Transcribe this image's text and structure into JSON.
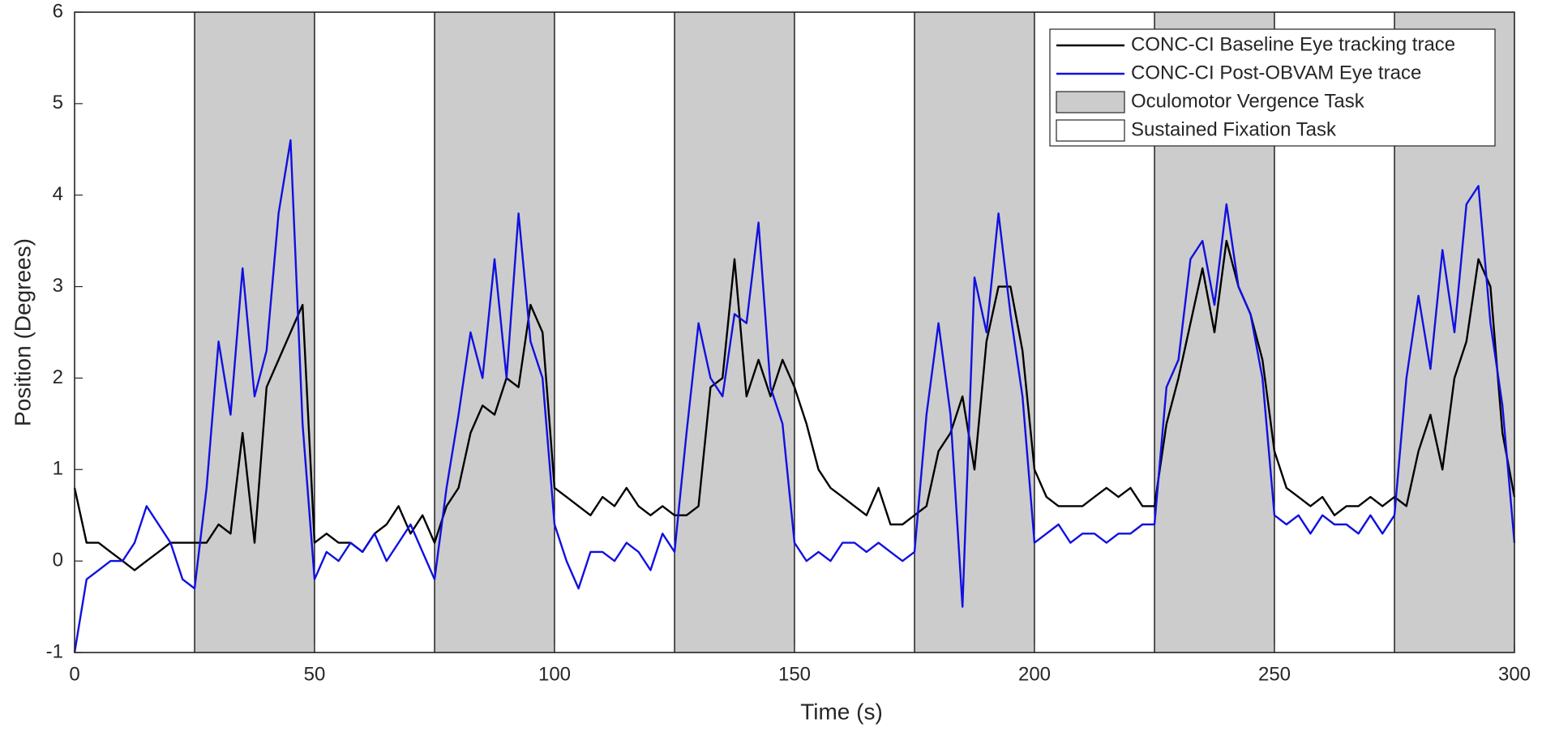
{
  "chart_data": {
    "type": "line",
    "xlabel": "Time (s)",
    "ylabel": "Position (Degrees)",
    "xlim": [
      0,
      300
    ],
    "ylim": [
      -1,
      6
    ],
    "xticks": [
      0,
      50,
      100,
      150,
      200,
      250,
      300
    ],
    "yticks": [
      -1,
      0,
      1,
      2,
      3,
      4,
      5,
      6
    ],
    "legend": "northeast",
    "regions": [
      {
        "name": "Oculomotor Vergence Task",
        "color": "#cccccc",
        "spans": [
          [
            25,
            50
          ],
          [
            75,
            100
          ],
          [
            125,
            150
          ],
          [
            175,
            200
          ],
          [
            225,
            250
          ],
          [
            275,
            300
          ]
        ]
      },
      {
        "name": "Sustained Fixation Task",
        "color": "#ffffff",
        "spans": [
          [
            0,
            25
          ],
          [
            50,
            75
          ],
          [
            100,
            125
          ],
          [
            150,
            175
          ],
          [
            200,
            225
          ],
          [
            250,
            275
          ]
        ]
      }
    ],
    "x": [
      0,
      2.5,
      5,
      7.5,
      10,
      12.5,
      15,
      17.5,
      20,
      22.5,
      25,
      27.5,
      30,
      32.5,
      35,
      37.5,
      40,
      42.5,
      45,
      47.5,
      50,
      52.5,
      55,
      57.5,
      60,
      62.5,
      65,
      67.5,
      70,
      72.5,
      75,
      77.5,
      80,
      82.5,
      85,
      87.5,
      90,
      92.5,
      95,
      97.5,
      100,
      102.5,
      105,
      107.5,
      110,
      112.5,
      115,
      117.5,
      120,
      122.5,
      125,
      127.5,
      130,
      132.5,
      135,
      137.5,
      140,
      142.5,
      145,
      147.5,
      150,
      152.5,
      155,
      157.5,
      160,
      162.5,
      165,
      167.5,
      170,
      172.5,
      175,
      177.5,
      180,
      182.5,
      185,
      187.5,
      190,
      192.5,
      195,
      197.5,
      200,
      202.5,
      205,
      207.5,
      210,
      212.5,
      215,
      217.5,
      220,
      222.5,
      225,
      227.5,
      230,
      232.5,
      235,
      237.5,
      240,
      242.5,
      245,
      247.5,
      250,
      252.5,
      255,
      257.5,
      260,
      262.5,
      265,
      267.5,
      270,
      272.5,
      275,
      277.5,
      280,
      282.5,
      285,
      287.5,
      290,
      292.5,
      295,
      297.5,
      300
    ],
    "series": [
      {
        "name": "CONC-CI Baseline Eye tracking trace",
        "color": "#000000",
        "values": [
          0.8,
          0.2,
          0.2,
          0.1,
          0.0,
          -0.1,
          0.0,
          0.1,
          0.2,
          0.2,
          0.2,
          0.2,
          0.4,
          0.3,
          1.4,
          0.2,
          1.9,
          2.2,
          2.5,
          2.8,
          0.2,
          0.3,
          0.2,
          0.2,
          0.1,
          0.3,
          0.4,
          0.6,
          0.3,
          0.5,
          0.2,
          0.6,
          0.8,
          1.4,
          1.7,
          1.6,
          2.0,
          1.9,
          2.8,
          2.5,
          0.8,
          0.7,
          0.6,
          0.5,
          0.7,
          0.6,
          0.8,
          0.6,
          0.5,
          0.6,
          0.5,
          0.5,
          0.6,
          1.9,
          2.0,
          3.3,
          1.8,
          2.2,
          1.8,
          2.2,
          1.9,
          1.5,
          1.0,
          0.8,
          0.7,
          0.6,
          0.5,
          0.8,
          0.4,
          0.4,
          0.5,
          0.6,
          1.2,
          1.4,
          1.8,
          1.0,
          2.4,
          3.0,
          3.0,
          2.3,
          1.0,
          0.7,
          0.6,
          0.6,
          0.6,
          0.7,
          0.8,
          0.7,
          0.8,
          0.6,
          0.6,
          1.5,
          2.0,
          2.6,
          3.2,
          2.5,
          3.5,
          3.0,
          2.7,
          2.2,
          1.2,
          0.8,
          0.7,
          0.6,
          0.7,
          0.5,
          0.6,
          0.6,
          0.7,
          0.6,
          0.7,
          0.6,
          1.2,
          1.6,
          1.0,
          2.0,
          2.4,
          3.3,
          3.0,
          1.4,
          0.7
        ]
      },
      {
        "name": "CONC-CI Post-OBVAM Eye trace",
        "color": "#1010e0",
        "values": [
          -1.0,
          -0.2,
          -0.1,
          0.0,
          0.0,
          0.2,
          0.6,
          0.4,
          0.2,
          -0.2,
          -0.3,
          0.8,
          2.4,
          1.6,
          3.2,
          1.8,
          2.3,
          3.8,
          4.6,
          1.5,
          -0.2,
          0.1,
          0.0,
          0.2,
          0.1,
          0.3,
          0.0,
          0.2,
          0.4,
          0.1,
          -0.2,
          0.8,
          1.6,
          2.5,
          2.0,
          3.3,
          2.0,
          3.8,
          2.4,
          2.0,
          0.4,
          0.0,
          -0.3,
          0.1,
          0.1,
          0.0,
          0.2,
          0.1,
          -0.1,
          0.3,
          0.1,
          1.4,
          2.6,
          2.0,
          1.8,
          2.7,
          2.6,
          3.7,
          1.9,
          1.5,
          0.2,
          0.0,
          0.1,
          0.0,
          0.2,
          0.2,
          0.1,
          0.2,
          0.1,
          0.0,
          0.1,
          1.6,
          2.6,
          1.6,
          -0.5,
          3.1,
          2.5,
          3.8,
          2.7,
          1.8,
          0.2,
          0.3,
          0.4,
          0.2,
          0.3,
          0.3,
          0.2,
          0.3,
          0.3,
          0.4,
          0.4,
          1.9,
          2.2,
          3.3,
          3.5,
          2.8,
          3.9,
          3.0,
          2.7,
          2.0,
          0.5,
          0.4,
          0.5,
          0.3,
          0.5,
          0.4,
          0.4,
          0.3,
          0.5,
          0.3,
          0.5,
          2.0,
          2.9,
          2.1,
          3.4,
          2.5,
          3.9,
          4.1,
          2.6,
          1.7,
          0.2
        ]
      }
    ]
  }
}
